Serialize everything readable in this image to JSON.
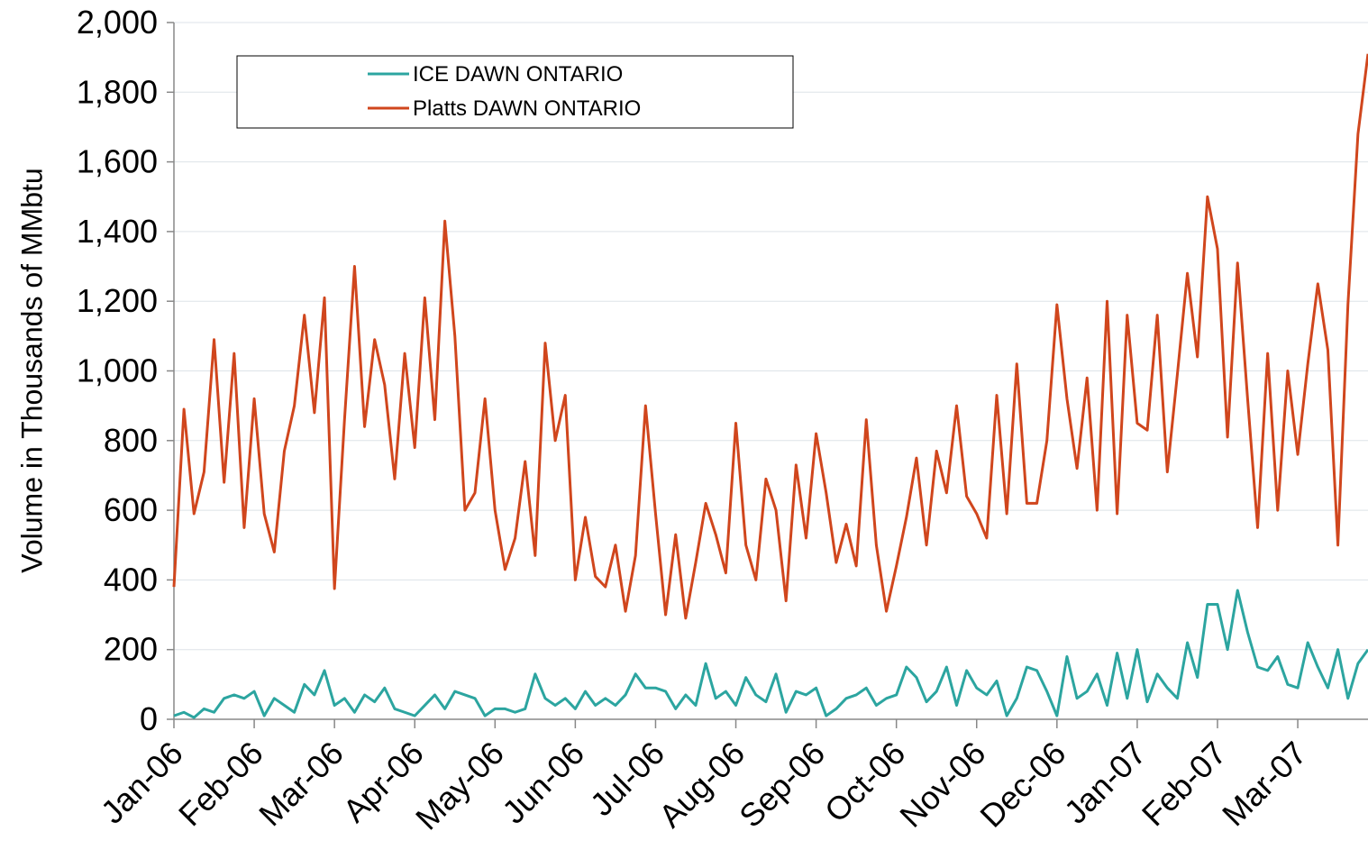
{
  "chart_data": {
    "type": "line",
    "y_label": "Volume in Thousands of MMbtu",
    "categories": [
      "Jan-06",
      null,
      null,
      null,
      null,
      null,
      null,
      null,
      "Feb-06",
      null,
      null,
      null,
      null,
      null,
      null,
      null,
      "Mar-06",
      null,
      null,
      null,
      null,
      null,
      null,
      null,
      "Apr-06",
      null,
      null,
      null,
      null,
      null,
      null,
      null,
      "May-06",
      null,
      null,
      null,
      null,
      null,
      null,
      null,
      "Jun-06",
      null,
      null,
      null,
      null,
      null,
      null,
      null,
      "Jul-06",
      null,
      null,
      null,
      null,
      null,
      null,
      null,
      "Aug-06",
      null,
      null,
      null,
      null,
      null,
      null,
      null,
      "Sep-06",
      null,
      null,
      null,
      null,
      null,
      null,
      null,
      "Oct-06",
      null,
      null,
      null,
      null,
      null,
      null,
      null,
      "Nov-06",
      null,
      null,
      null,
      null,
      null,
      null,
      null,
      "Dec-06",
      null,
      null,
      null,
      null,
      null,
      null,
      null,
      "Jan-07",
      null,
      null,
      null,
      null,
      null,
      null,
      null,
      "Feb-07",
      null,
      null,
      null,
      null,
      null,
      null,
      null,
      "Mar-07",
      null,
      null,
      null,
      null,
      null,
      null,
      null
    ],
    "series": [
      {
        "name": "ICE DAWN ONTARIO",
        "color": "#2ca5a0",
        "values": [
          10,
          20,
          5,
          30,
          20,
          60,
          70,
          60,
          80,
          10,
          60,
          40,
          20,
          100,
          70,
          140,
          40,
          60,
          20,
          70,
          50,
          90,
          30,
          20,
          10,
          40,
          70,
          30,
          80,
          70,
          60,
          10,
          30,
          30,
          20,
          30,
          130,
          60,
          40,
          60,
          30,
          80,
          40,
          60,
          40,
          70,
          130,
          90,
          90,
          80,
          30,
          70,
          40,
          160,
          60,
          80,
          40,
          120,
          70,
          50,
          130,
          20,
          80,
          70,
          90,
          10,
          30,
          60,
          70,
          90,
          40,
          60,
          70,
          150,
          120,
          50,
          80,
          150,
          40,
          140,
          90,
          70,
          110,
          10,
          60,
          150,
          140,
          80,
          10,
          180,
          60,
          80,
          130,
          40,
          190,
          60,
          200,
          50,
          130,
          90,
          60,
          220,
          120,
          330,
          330,
          200,
          370,
          250,
          150,
          140,
          180,
          100,
          90,
          220,
          150,
          90,
          200,
          60,
          160,
          200
        ]
      },
      {
        "name": "Platts DAWN ONTARIO",
        "color": "#d0461d",
        "values": [
          380,
          890,
          590,
          710,
          1090,
          680,
          1050,
          550,
          920,
          590,
          480,
          770,
          900,
          1160,
          880,
          1210,
          375,
          860,
          1300,
          840,
          1090,
          960,
          690,
          1050,
          780,
          1210,
          860,
          1430,
          1100,
          600,
          650,
          920,
          600,
          430,
          520,
          740,
          470,
          1080,
          800,
          930,
          400,
          580,
          410,
          380,
          500,
          310,
          470,
          900,
          590,
          300,
          530,
          290,
          450,
          620,
          530,
          420,
          850,
          500,
          400,
          690,
          600,
          340,
          730,
          520,
          820,
          650,
          450,
          560,
          440,
          860,
          500,
          310,
          440,
          580,
          750,
          500,
          770,
          650,
          900,
          640,
          590,
          520,
          930,
          590,
          1020,
          620,
          620,
          800,
          1190,
          920,
          720,
          980,
          600,
          1200,
          590,
          1160,
          850,
          830,
          1160,
          710,
          990,
          1280,
          1040,
          1500,
          1350,
          810,
          1310,
          920,
          550,
          1050,
          600,
          1000,
          760,
          1020,
          1250,
          1060,
          500,
          1190,
          1680,
          1910
        ]
      }
    ],
    "ylim": [
      0,
      2000
    ],
    "yticks": [
      0,
      200,
      400,
      600,
      800,
      {
        "value": 1000,
        "label": "1,000"
      },
      {
        "value": 1200,
        "label": "1,200"
      },
      {
        "value": 1400,
        "label": "1,400"
      },
      {
        "value": 1600,
        "label": "1,600"
      },
      {
        "value": 1800,
        "label": "1,800"
      },
      {
        "value": 2000,
        "label": "2,000"
      }
    ],
    "grid": true,
    "legend": "top-left"
  }
}
